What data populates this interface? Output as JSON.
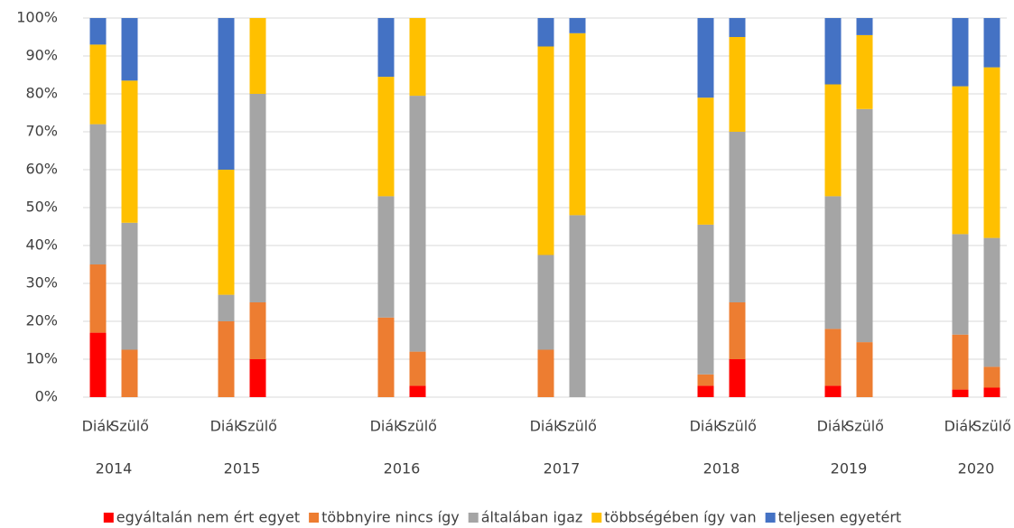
{
  "chart_data": {
    "type": "stacked_bar_100",
    "groups": [
      "2014",
      "2015",
      "2016",
      "2017",
      "2018",
      "2019",
      "2020"
    ],
    "categories": [
      "Diák",
      "Szülő",
      "Diák",
      "Szülő",
      "Diák",
      "Szülő",
      "Diák",
      "Szülő",
      "Diák",
      "Szülő",
      "Diák",
      "Szülő",
      "Diák",
      "Szülő"
    ],
    "series": [
      {
        "name": "egyáltalán nem ért egyet",
        "color": "#ff0000",
        "values": [
          17,
          0,
          0,
          10,
          0,
          3,
          0,
          0,
          3,
          10,
          3,
          0,
          2,
          2.5
        ]
      },
      {
        "name": "többnyire nincs így",
        "color": "#ed7d31",
        "values": [
          18,
          12.5,
          20,
          15,
          21,
          9,
          12.5,
          0,
          3,
          15,
          15,
          14.5,
          14.5,
          5.5
        ]
      },
      {
        "name": "általában igaz",
        "color": "#a5a5a5",
        "values": [
          37,
          33.5,
          7,
          55,
          32,
          67.5,
          25,
          48,
          39.5,
          45,
          35,
          61.5,
          26.5,
          34
        ]
      },
      {
        "name": "többségében így van",
        "color": "#ffc000",
        "values": [
          21,
          37.5,
          33,
          20,
          31.5,
          20.5,
          55,
          48,
          33.5,
          25,
          29.5,
          19.5,
          39,
          45
        ]
      },
      {
        "name": "teljesen egyetért",
        "color": "#4472c4",
        "values": [
          7,
          16.5,
          40,
          0,
          15.5,
          0,
          7.5,
          4,
          21,
          5,
          17.5,
          4.5,
          18,
          13
        ]
      }
    ],
    "ylim": [
      0,
      100
    ],
    "yticks": [
      {
        "value": 0,
        "label": "0%"
      },
      {
        "value": 10,
        "label": "10%"
      },
      {
        "value": 20,
        "label": "20%"
      },
      {
        "value": 30,
        "label": "30%"
      },
      {
        "value": 40,
        "label": "40%"
      },
      {
        "value": 50,
        "label": "50%"
      },
      {
        "value": 60,
        "label": "60%"
      },
      {
        "value": 70,
        "label": "70%"
      },
      {
        "value": 80,
        "label": "80%"
      },
      {
        "value": 90,
        "label": "90%"
      },
      {
        "value": 100,
        "label": "100%"
      }
    ],
    "grid": true,
    "legend": "bottom"
  }
}
